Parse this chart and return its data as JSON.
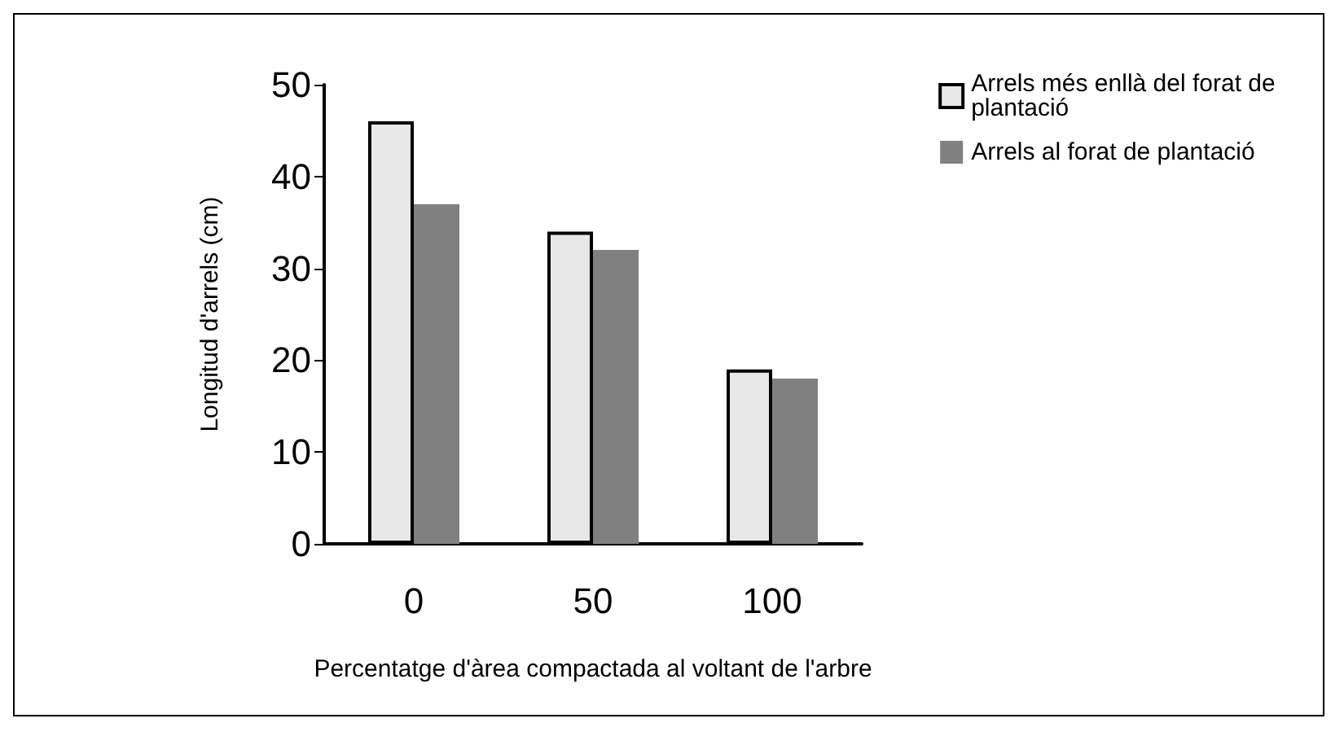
{
  "chart_data": {
    "type": "bar",
    "xlabel": "Percentatge d'àrea compactada al voltant de l'arbre",
    "ylabel": "Longitud d'arrels (cm)",
    "categories": [
      "0",
      "50",
      "100"
    ],
    "series": [
      {
        "name": "Arrels més enllà del forat de plantació",
        "color": "#e8e8e8",
        "values": [
          46,
          34,
          19
        ]
      },
      {
        "name": "Arrels al forat de plantació",
        "color": "#808080",
        "values": [
          37,
          32,
          18
        ]
      }
    ],
    "ylim": [
      0,
      50
    ],
    "yticks": [
      0,
      10,
      20,
      30,
      40,
      50
    ],
    "grid": false,
    "legend": "top right"
  }
}
